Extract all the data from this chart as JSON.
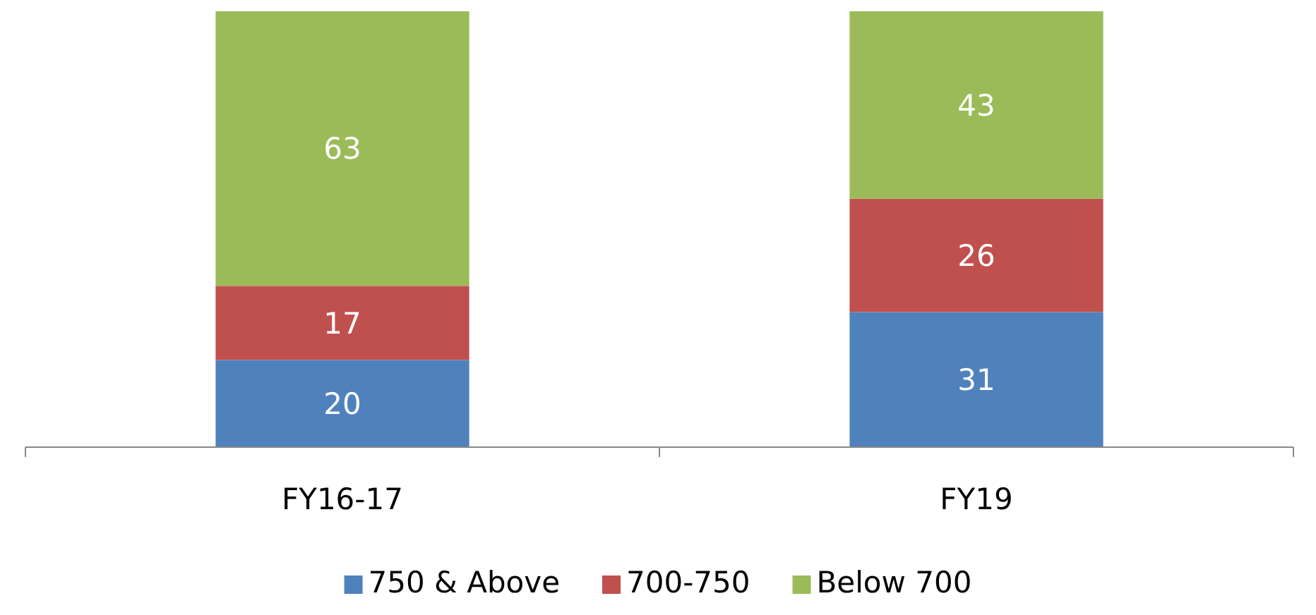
{
  "chart_data": {
    "type": "bar",
    "stacked": true,
    "data_labels": true,
    "legend": "bottom",
    "categories": [
      "FY16-17",
      "FY19"
    ],
    "series": [
      {
        "name": "750 & Above",
        "color": "#4f81bd",
        "values": [
          20,
          31
        ]
      },
      {
        "name": "700-750",
        "color": "#c0504d",
        "values": [
          17,
          26
        ]
      },
      {
        "name": "Below 700",
        "color": "#9bbb59",
        "values": [
          63,
          43
        ]
      }
    ]
  }
}
